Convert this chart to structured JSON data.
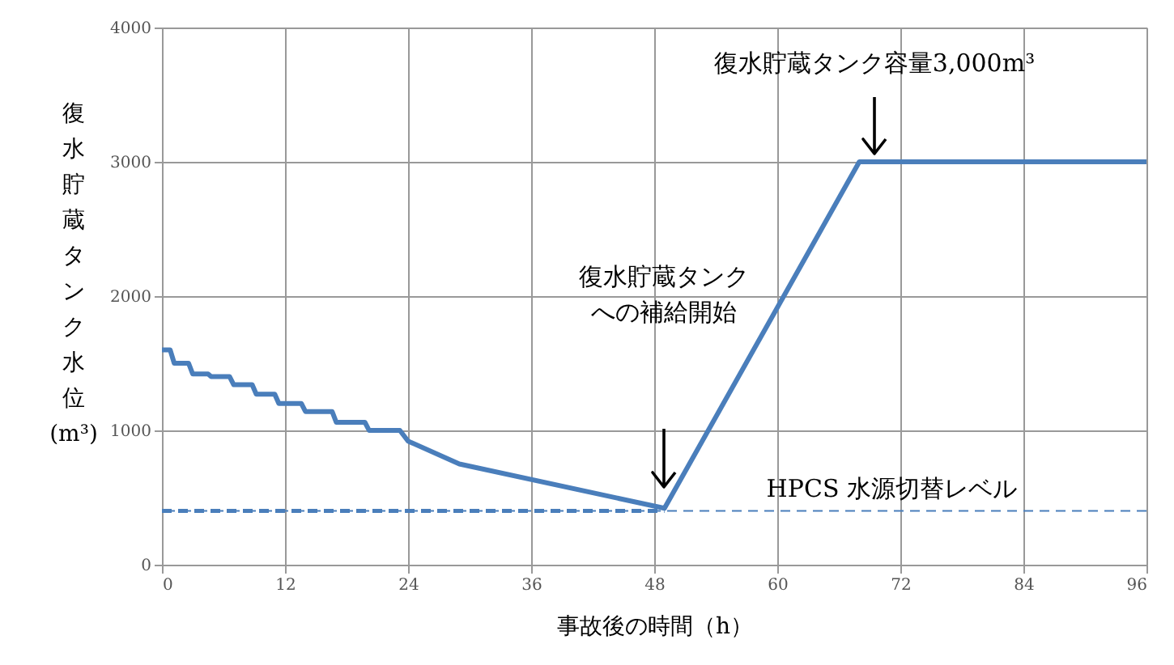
{
  "chart_data": {
    "type": "line",
    "xlabel": "事故後の時間（h）",
    "ylabel": "復水貯蔵タンク水位(m³)",
    "xlim": [
      0,
      96
    ],
    "ylim": [
      0,
      4000
    ],
    "xticks": [
      0,
      12,
      24,
      36,
      48,
      60,
      72,
      84,
      96
    ],
    "yticks": [
      0,
      1000,
      2000,
      3000,
      4000
    ],
    "grid": true,
    "series": [
      {
        "color": "#4a7ebb",
        "line_style": "solid",
        "x": [
          0,
          0.8,
          1.2,
          2.6,
          3,
          4.5,
          4.8,
          6.6,
          7,
          8.8,
          9.2,
          11,
          11.4,
          13.6,
          14,
          16.6,
          17,
          19.8,
          20.2,
          23.2,
          24,
          29,
          49,
          68,
          96
        ],
        "values": [
          1600,
          1600,
          1500,
          1500,
          1420,
          1420,
          1400,
          1400,
          1340,
          1340,
          1270,
          1270,
          1200,
          1200,
          1140,
          1140,
          1060,
          1060,
          1000,
          1000,
          920,
          750,
          420,
          3000,
          3000
        ]
      },
      {
        "color": "#4a7ebb",
        "line_style": "dashed",
        "x": [
          0,
          49
        ],
        "values": [
          400,
          400
        ]
      }
    ],
    "ref_lines": [
      {
        "axis": "y",
        "value": 400,
        "label": "HPCS 水源切替レベル",
        "color": "#4a7ebb",
        "line_style": "dashed"
      }
    ],
    "annotations": [
      "復水貯蔵タンク容量3,000m³",
      "復水貯蔵タンクへの補給開始"
    ]
  }
}
